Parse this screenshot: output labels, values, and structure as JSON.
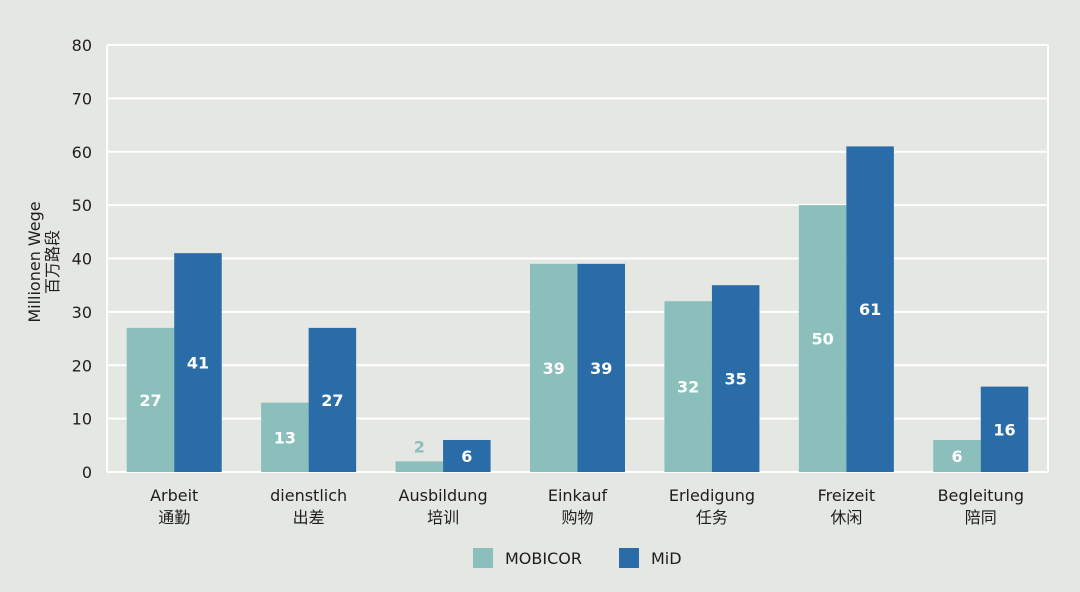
{
  "chart_data": {
    "type": "bar",
    "ylabel": "Millionen Wege",
    "ylabel_zh": "百万路段",
    "ylim": [
      0,
      80
    ],
    "yticks": [
      "0",
      "10",
      "20",
      "30",
      "40",
      "50",
      "60",
      "70",
      "80"
    ],
    "grid": true,
    "legend_position": "bottom-center",
    "categories": [
      {
        "de": "Arbeit",
        "zh": "通勤"
      },
      {
        "de": "dienstlich",
        "zh": "出差"
      },
      {
        "de": "Ausbildung",
        "zh": "培训"
      },
      {
        "de": "Einkauf",
        "zh": "购物"
      },
      {
        "de": "Erledigung",
        "zh": "任务"
      },
      {
        "de": "Freizeit",
        "zh": "休闲"
      },
      {
        "de": "Begleitung",
        "zh": "陪同"
      }
    ],
    "series": [
      {
        "name": "MOBICOR",
        "color": "#8abfbb",
        "values": [
          27,
          13,
          2,
          39,
          32,
          50,
          6
        ]
      },
      {
        "name": "MiD",
        "color": "#2a6ca8",
        "values": [
          41,
          27,
          6,
          39,
          35,
          61,
          16
        ]
      }
    ]
  }
}
